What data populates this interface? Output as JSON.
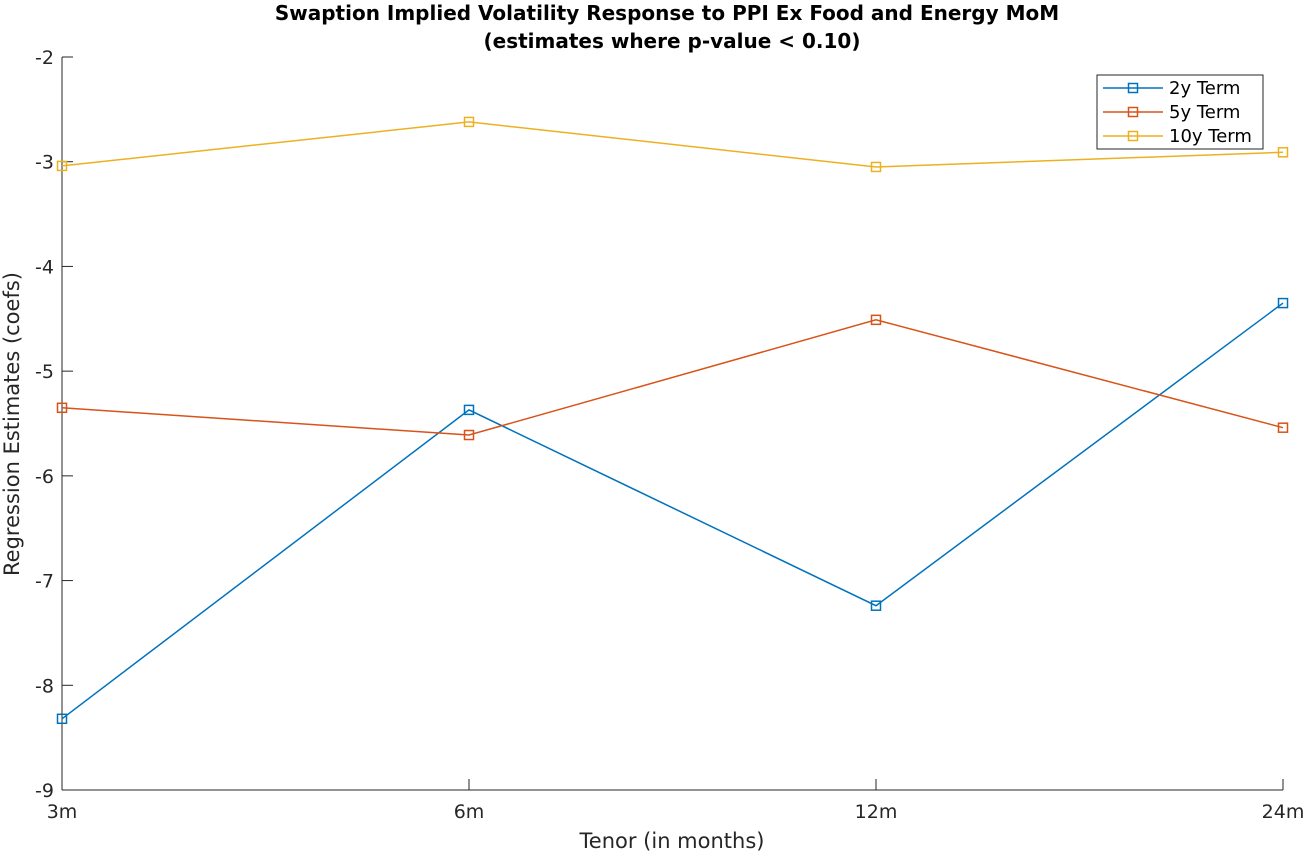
{
  "chart_data": {
    "type": "line",
    "title": "Swaption Implied Volatility Response to PPI Ex Food and Energy MoM",
    "subtitle": "(estimates where p-value < 0.10)",
    "xlabel": "Tenor (in months)",
    "ylabel": "Regression Estimates (coefs)",
    "categories": [
      "3m",
      "6m",
      "12m",
      "24m"
    ],
    "ylim": [
      -9,
      -2
    ],
    "yticks": [
      -9,
      -8,
      -7,
      -6,
      -5,
      -4,
      -3,
      -2
    ],
    "grid": false,
    "legend": "top-right",
    "series": [
      {
        "name": "2y Term",
        "color": "#0072BD",
        "marker": "square",
        "values": [
          -8.32,
          -5.37,
          -7.24,
          -4.35
        ]
      },
      {
        "name": "5y Term",
        "color": "#D95319",
        "marker": "square",
        "values": [
          -5.35,
          -5.61,
          -4.51,
          -5.54
        ]
      },
      {
        "name": "10y Term",
        "color": "#EDB120",
        "marker": "square",
        "values": [
          -3.04,
          -2.62,
          -3.05,
          -2.91
        ]
      }
    ]
  }
}
